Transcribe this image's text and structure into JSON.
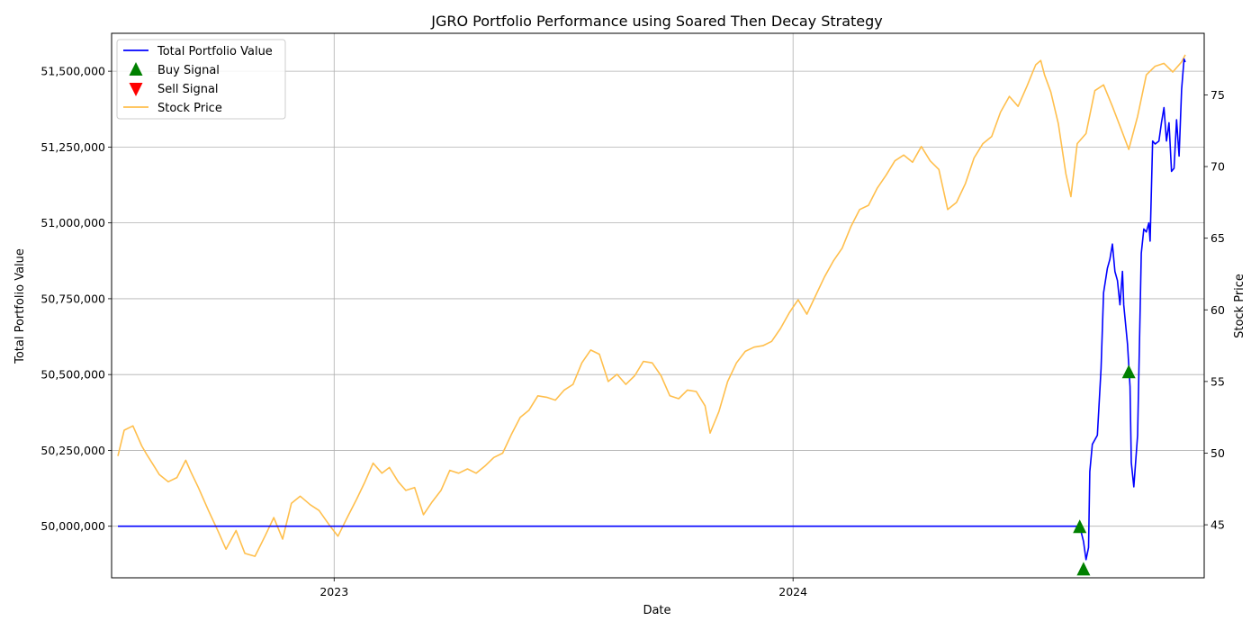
{
  "chart_data": {
    "type": "line",
    "title": "JGRO Portfolio Performance using Soared Then Decay Strategy",
    "xlabel": "Date",
    "ylabel": "Total Portfolio Value",
    "y2label": "Stock Price",
    "xlim": [
      "2022-07-08",
      "2024-11-23"
    ],
    "ylim": [
      49830000,
      51625000
    ],
    "y2lim": [
      41.3,
      79.3
    ],
    "x_ticks": [
      {
        "date": "2023-01-01",
        "label": "2023"
      },
      {
        "date": "2024-01-01",
        "label": "2024"
      }
    ],
    "y_ticks": [
      {
        "value": 50000000,
        "label": "50,000,000"
      },
      {
        "value": 50250000,
        "label": "50,250,000"
      },
      {
        "value": 50500000,
        "label": "50,500,000"
      },
      {
        "value": 50750000,
        "label": "50,750,000"
      },
      {
        "value": 51000000,
        "label": "51,000,000"
      },
      {
        "value": 51250000,
        "label": "51,250,000"
      },
      {
        "value": 51500000,
        "label": "51,500,000"
      }
    ],
    "y2_ticks": [
      {
        "value": 45,
        "label": "45"
      },
      {
        "value": 50,
        "label": "50"
      },
      {
        "value": 55,
        "label": "55"
      },
      {
        "value": 60,
        "label": "60"
      },
      {
        "value": 65,
        "label": "65"
      },
      {
        "value": 70,
        "label": "70"
      },
      {
        "value": 75,
        "label": "75"
      }
    ],
    "grid": true,
    "legend": {
      "placement": "top-left"
    },
    "colors": {
      "portfolio": "#0000ff",
      "buy": "#008000",
      "sell": "#ff0000",
      "price": "#ffbf4d"
    },
    "series": [
      {
        "name": "Total Portfolio Value",
        "axis": "left",
        "style": "line",
        "points": [
          [
            "2022-07-13",
            50000000
          ],
          [
            "2024-08-16",
            50000000
          ],
          [
            "2024-08-19",
            49950000
          ],
          [
            "2024-08-21",
            49890000
          ],
          [
            "2024-08-23",
            49930000
          ],
          [
            "2024-08-24",
            50180000
          ],
          [
            "2024-08-26",
            50270000
          ],
          [
            "2024-08-30",
            50300000
          ],
          [
            "2024-09-02",
            50520000
          ],
          [
            "2024-09-04",
            50770000
          ],
          [
            "2024-09-07",
            50850000
          ],
          [
            "2024-09-09",
            50880000
          ],
          [
            "2024-09-11",
            50930000
          ],
          [
            "2024-09-13",
            50840000
          ],
          [
            "2024-09-15",
            50810000
          ],
          [
            "2024-09-17",
            50730000
          ],
          [
            "2024-09-19",
            50840000
          ],
          [
            "2024-09-20",
            50730000
          ],
          [
            "2024-09-23",
            50600000
          ],
          [
            "2024-09-25",
            50460000
          ],
          [
            "2024-09-26",
            50210000
          ],
          [
            "2024-09-28",
            50130000
          ],
          [
            "2024-10-01",
            50300000
          ],
          [
            "2024-10-04",
            50900000
          ],
          [
            "2024-10-06",
            50980000
          ],
          [
            "2024-10-08",
            50970000
          ],
          [
            "2024-10-10",
            51000000
          ],
          [
            "2024-10-11",
            50940000
          ],
          [
            "2024-10-13",
            51270000
          ],
          [
            "2024-10-15",
            51260000
          ],
          [
            "2024-10-18",
            51270000
          ],
          [
            "2024-10-20",
            51330000
          ],
          [
            "2024-10-22",
            51380000
          ],
          [
            "2024-10-24",
            51270000
          ],
          [
            "2024-10-26",
            51330000
          ],
          [
            "2024-10-28",
            51170000
          ],
          [
            "2024-10-30",
            51180000
          ],
          [
            "2024-11-01",
            51340000
          ],
          [
            "2024-11-03",
            51220000
          ],
          [
            "2024-11-05",
            51440000
          ],
          [
            "2024-11-07",
            51540000
          ],
          [
            "2024-11-08",
            51530000
          ]
        ]
      },
      {
        "name": "Buy Signal",
        "axis": "left",
        "style": "marker-up",
        "points": [
          [
            "2024-08-16",
            50000000
          ],
          [
            "2024-08-19",
            49860000
          ],
          [
            "2024-09-24",
            50510000
          ]
        ]
      },
      {
        "name": "Sell Signal",
        "axis": "left",
        "style": "marker-down",
        "points": []
      },
      {
        "name": "Stock Price",
        "axis": "right",
        "style": "line",
        "points": [
          [
            "2022-07-13",
            49.8
          ],
          [
            "2022-07-18",
            51.6
          ],
          [
            "2022-07-25",
            51.9
          ],
          [
            "2022-08-01",
            50.5
          ],
          [
            "2022-08-05",
            49.9
          ],
          [
            "2022-08-10",
            49.2
          ],
          [
            "2022-08-15",
            48.5
          ],
          [
            "2022-08-22",
            48.0
          ],
          [
            "2022-08-29",
            48.3
          ],
          [
            "2022-09-05",
            49.5
          ],
          [
            "2022-09-09",
            48.7
          ],
          [
            "2022-09-15",
            47.6
          ],
          [
            "2022-09-23",
            46.0
          ],
          [
            "2022-10-01",
            44.5
          ],
          [
            "2022-10-07",
            43.3
          ],
          [
            "2022-10-15",
            44.6
          ],
          [
            "2022-10-22",
            43.0
          ],
          [
            "2022-10-30",
            42.8
          ],
          [
            "2022-11-07",
            44.2
          ],
          [
            "2022-11-14",
            45.5
          ],
          [
            "2022-11-21",
            44.0
          ],
          [
            "2022-11-28",
            46.5
          ],
          [
            "2022-12-05",
            47.0
          ],
          [
            "2022-12-13",
            46.4
          ],
          [
            "2022-12-20",
            46.0
          ],
          [
            "2022-12-28",
            45.0
          ],
          [
            "2023-01-04",
            44.2
          ],
          [
            "2023-01-12",
            45.6
          ],
          [
            "2023-01-19",
            46.8
          ],
          [
            "2023-01-25",
            47.9
          ],
          [
            "2023-02-01",
            49.3
          ],
          [
            "2023-02-08",
            48.6
          ],
          [
            "2023-02-14",
            49.0
          ],
          [
            "2023-02-21",
            48.0
          ],
          [
            "2023-02-27",
            47.4
          ],
          [
            "2023-03-06",
            47.6
          ],
          [
            "2023-03-13",
            45.7
          ],
          [
            "2023-03-20",
            46.6
          ],
          [
            "2023-03-27",
            47.4
          ],
          [
            "2023-04-03",
            48.8
          ],
          [
            "2023-04-10",
            48.6
          ],
          [
            "2023-04-17",
            48.9
          ],
          [
            "2023-04-24",
            48.6
          ],
          [
            "2023-05-01",
            49.1
          ],
          [
            "2023-05-08",
            49.7
          ],
          [
            "2023-05-15",
            50.0
          ],
          [
            "2023-05-22",
            51.3
          ],
          [
            "2023-05-29",
            52.5
          ],
          [
            "2023-06-05",
            53.0
          ],
          [
            "2023-06-12",
            54.0
          ],
          [
            "2023-06-19",
            53.9
          ],
          [
            "2023-06-26",
            53.7
          ],
          [
            "2023-07-03",
            54.4
          ],
          [
            "2023-07-10",
            54.8
          ],
          [
            "2023-07-17",
            56.3
          ],
          [
            "2023-07-24",
            57.2
          ],
          [
            "2023-07-31",
            56.9
          ],
          [
            "2023-08-07",
            55.0
          ],
          [
            "2023-08-14",
            55.5
          ],
          [
            "2023-08-21",
            54.8
          ],
          [
            "2023-08-28",
            55.4
          ],
          [
            "2023-09-04",
            56.4
          ],
          [
            "2023-09-11",
            56.3
          ],
          [
            "2023-09-18",
            55.4
          ],
          [
            "2023-09-25",
            54.0
          ],
          [
            "2023-10-02",
            53.8
          ],
          [
            "2023-10-09",
            54.4
          ],
          [
            "2023-10-16",
            54.3
          ],
          [
            "2023-10-23",
            53.3
          ],
          [
            "2023-10-27",
            51.4
          ],
          [
            "2023-11-03",
            52.9
          ],
          [
            "2023-11-10",
            55.0
          ],
          [
            "2023-11-17",
            56.3
          ],
          [
            "2023-11-24",
            57.1
          ],
          [
            "2023-12-01",
            57.4
          ],
          [
            "2023-12-08",
            57.5
          ],
          [
            "2023-12-15",
            57.8
          ],
          [
            "2023-12-22",
            58.7
          ],
          [
            "2023-12-29",
            59.8
          ],
          [
            "2024-01-05",
            60.7
          ],
          [
            "2024-01-12",
            59.7
          ],
          [
            "2024-01-19",
            61.0
          ],
          [
            "2024-01-26",
            62.3
          ],
          [
            "2024-02-02",
            63.4
          ],
          [
            "2024-02-09",
            64.3
          ],
          [
            "2024-02-16",
            65.8
          ],
          [
            "2024-02-23",
            67.0
          ],
          [
            "2024-03-01",
            67.3
          ],
          [
            "2024-03-08",
            68.5
          ],
          [
            "2024-03-15",
            69.4
          ],
          [
            "2024-03-22",
            70.4
          ],
          [
            "2024-03-29",
            70.8
          ],
          [
            "2024-04-05",
            70.3
          ],
          [
            "2024-04-12",
            71.4
          ],
          [
            "2024-04-19",
            70.4
          ],
          [
            "2024-04-26",
            69.8
          ],
          [
            "2024-05-03",
            67.0
          ],
          [
            "2024-05-10",
            67.5
          ],
          [
            "2024-05-17",
            68.8
          ],
          [
            "2024-05-24",
            70.6
          ],
          [
            "2024-05-31",
            71.6
          ],
          [
            "2024-06-07",
            72.1
          ],
          [
            "2024-06-14",
            73.8
          ],
          [
            "2024-06-21",
            74.9
          ],
          [
            "2024-06-28",
            74.2
          ],
          [
            "2024-07-05",
            75.6
          ],
          [
            "2024-07-12",
            77.1
          ],
          [
            "2024-07-16",
            77.4
          ],
          [
            "2024-07-19",
            76.4
          ],
          [
            "2024-07-24",
            75.2
          ],
          [
            "2024-07-30",
            73.0
          ],
          [
            "2024-08-05",
            69.5
          ],
          [
            "2024-08-09",
            67.9
          ],
          [
            "2024-08-14",
            71.6
          ],
          [
            "2024-08-21",
            72.3
          ],
          [
            "2024-08-28",
            75.3
          ],
          [
            "2024-09-04",
            75.7
          ],
          [
            "2024-09-11",
            74.2
          ],
          [
            "2024-09-18",
            72.6
          ],
          [
            "2024-09-24",
            71.2
          ],
          [
            "2024-10-01",
            73.5
          ],
          [
            "2024-10-08",
            76.4
          ],
          [
            "2024-10-15",
            77.0
          ],
          [
            "2024-10-22",
            77.2
          ],
          [
            "2024-10-29",
            76.6
          ],
          [
            "2024-11-05",
            77.3
          ],
          [
            "2024-11-08",
            77.8
          ]
        ]
      }
    ]
  }
}
